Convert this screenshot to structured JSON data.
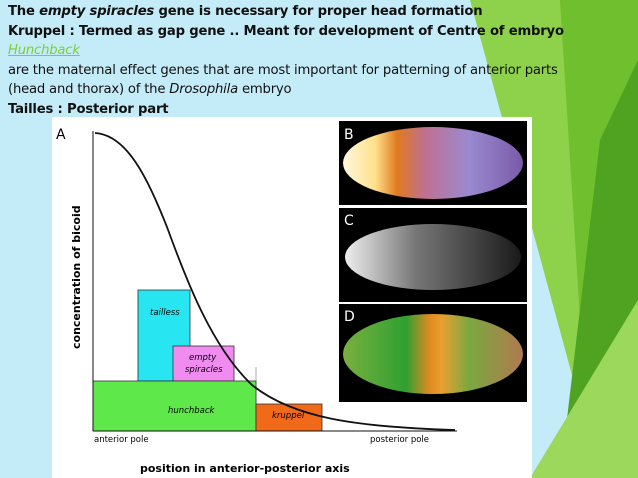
{
  "slide": {
    "lines": [
      [
        "The ",
        "empty spiracles",
        " gene is necessary for proper head formation"
      ],
      [
        "Kruppel : Termed as gap gene .. Meant for development of Centre of embryo ",
        "Hunchback"
      ],
      [
        "are the maternal effect genes that are most important for patterning of anterior  parts"
      ],
      [
        "(head and thorax) of the ",
        "Drosophila",
        " embryo"
      ],
      [
        "Tailles : Posterior part"
      ]
    ],
    "figure": {
      "panel_labels": [
        "A",
        "B",
        "C",
        "D"
      ],
      "y_axis_label": "concentration of bicoid",
      "x_axis_label": "position in anterior-posterior axis",
      "anterior": "anterior pole",
      "posterior": "posterior pole",
      "genes": [
        "tailless",
        "empty",
        "spiracles",
        "hunchback",
        "kruppel"
      ]
    }
  }
}
